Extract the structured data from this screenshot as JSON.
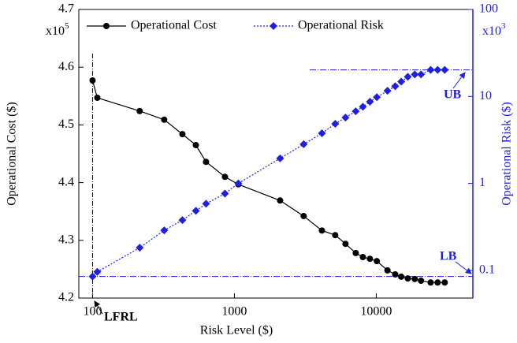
{
  "chart_data": {
    "type": "line",
    "x_label": "Risk Level ($)",
    "y_label": "Operational Cost ($)",
    "y2_label": "Operational Risk ($)",
    "y_multiplier": {
      "base": "x10",
      "exponent": "5"
    },
    "y2_multiplier": {
      "base": "x10",
      "exponent": "3"
    },
    "xscale": "log",
    "y2scale": "log",
    "legend": "upper left",
    "x": [
      100,
      108,
      215,
      320,
      430,
      535,
      631,
      858,
      1066,
      2100,
      3080,
      4140,
      5140,
      6070,
      7170,
      8050,
      9030,
      10100,
      12000,
      13600,
      15000,
      16700,
      18700,
      20700,
      24200,
      27100,
      30400
    ],
    "xlim": [
      80,
      48000
    ],
    "xticks": [
      100,
      1000,
      10000
    ],
    "ylim": [
      4.2,
      4.7
    ],
    "yticks": [
      4.2,
      4.3,
      4.4,
      4.5,
      4.6,
      4.7
    ],
    "y2lim": [
      0.048,
      100
    ],
    "y2ticks": [
      0.1,
      1,
      10,
      100
    ],
    "series": [
      {
        "name": "Operational Cost",
        "color": "#000000",
        "marker": "circle",
        "axis": "y",
        "values": [
          4.577,
          4.547,
          4.524,
          4.509,
          4.484,
          4.465,
          4.436,
          4.41,
          4.397,
          4.369,
          4.342,
          4.317,
          4.309,
          4.294,
          4.278,
          4.271,
          4.268,
          4.264,
          4.248,
          4.241,
          4.237,
          4.234,
          4.233,
          4.23,
          4.227,
          4.227,
          4.227
        ]
      },
      {
        "name": "Operational Risk",
        "color": "#1f1fe0",
        "marker": "diamond",
        "axis": "y2",
        "values": [
          0.085,
          0.096,
          0.182,
          0.288,
          0.378,
          0.484,
          0.583,
          0.764,
          1.0,
          1.94,
          2.82,
          3.77,
          4.84,
          5.71,
          6.74,
          7.6,
          8.7,
          9.8,
          11.6,
          13.1,
          14.8,
          16.8,
          17.9,
          17.9,
          20.2,
          20.2,
          20.2
        ]
      }
    ],
    "annotations": [
      {
        "text": "UB",
        "value": 20.2,
        "axis": "y2"
      },
      {
        "text": "LB",
        "value": 0.085,
        "axis": "y2"
      },
      {
        "text": "LFRL",
        "value": 100,
        "axis": "x"
      }
    ]
  }
}
